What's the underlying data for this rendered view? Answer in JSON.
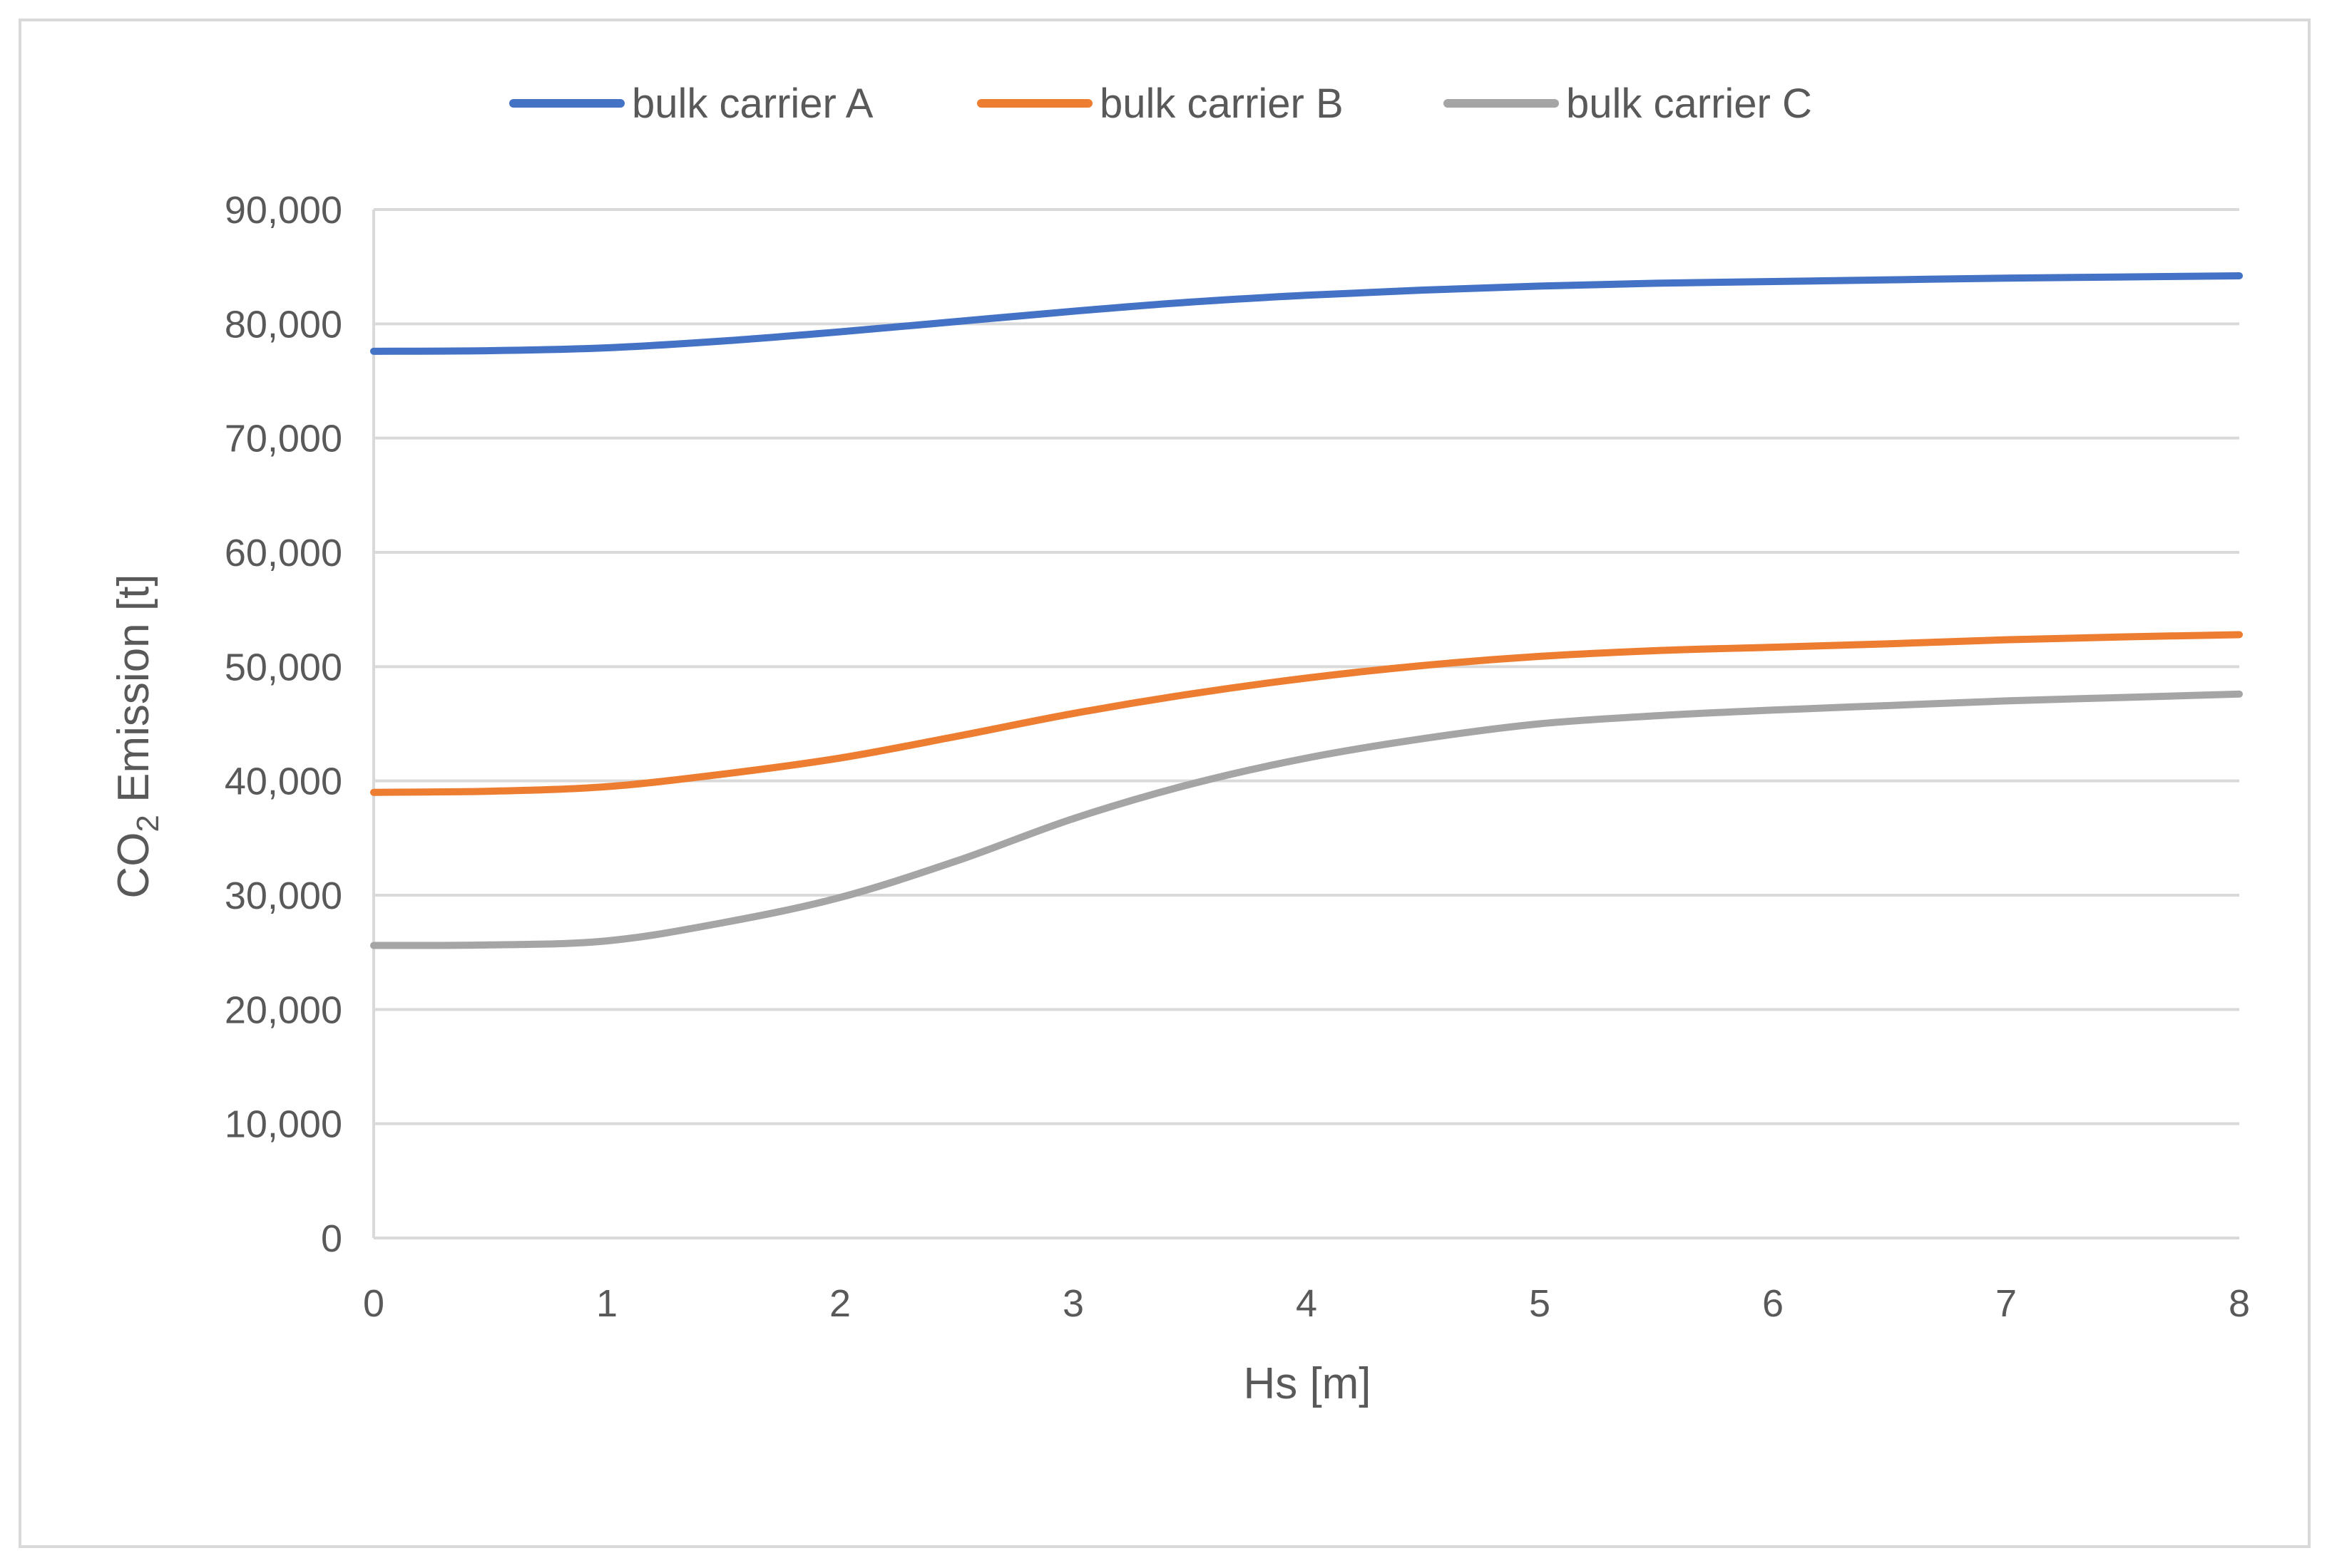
{
  "chart_data": {
    "type": "line",
    "title": "",
    "xlabel": "Hs [m]",
    "ylabel_main": "CO",
    "ylabel_sub": "2",
    "ylabel_rest": " Emission [t]",
    "xlim": [
      0,
      8
    ],
    "ylim": [
      0,
      90000
    ],
    "grid": true,
    "legend_position": "top-center",
    "x_ticks": [
      0,
      1,
      2,
      3,
      4,
      5,
      6,
      7,
      8
    ],
    "y_ticks": [
      0,
      10000,
      20000,
      30000,
      40000,
      50000,
      60000,
      70000,
      80000,
      90000
    ],
    "x_tick_labels": [
      "0",
      "1",
      "2",
      "3",
      "4",
      "5",
      "6",
      "7",
      "8"
    ],
    "y_tick_labels": [
      "0",
      "10,000",
      "20,000",
      "30,000",
      "40,000",
      "50,000",
      "60,000",
      "70,000",
      "80,000",
      "90,000"
    ],
    "x": [
      0,
      0.5,
      1,
      1.5,
      2,
      2.5,
      3,
      3.5,
      4,
      4.5,
      5,
      5.5,
      6,
      6.5,
      7,
      7.5,
      8
    ],
    "series": [
      {
        "name": "bulk carrier A",
        "color": "#4472c4",
        "values": [
          77600,
          77650,
          77900,
          78500,
          79300,
          80200,
          81100,
          81900,
          82500,
          82950,
          83300,
          83550,
          83700,
          83850,
          84000,
          84100,
          84200
        ]
      },
      {
        "name": "bulk carrier B",
        "color": "#ed7d31",
        "values": [
          39000,
          39100,
          39500,
          40600,
          42000,
          43900,
          45900,
          47600,
          49000,
          50100,
          50900,
          51400,
          51700,
          52000,
          52350,
          52600,
          52800
        ]
      },
      {
        "name": "bulk carrier C",
        "color": "#a5a5a5",
        "values": [
          25600,
          25650,
          26000,
          27600,
          29800,
          33000,
          36700,
          39700,
          42000,
          43700,
          45000,
          45700,
          46200,
          46600,
          47000,
          47300,
          47600
        ]
      }
    ]
  }
}
